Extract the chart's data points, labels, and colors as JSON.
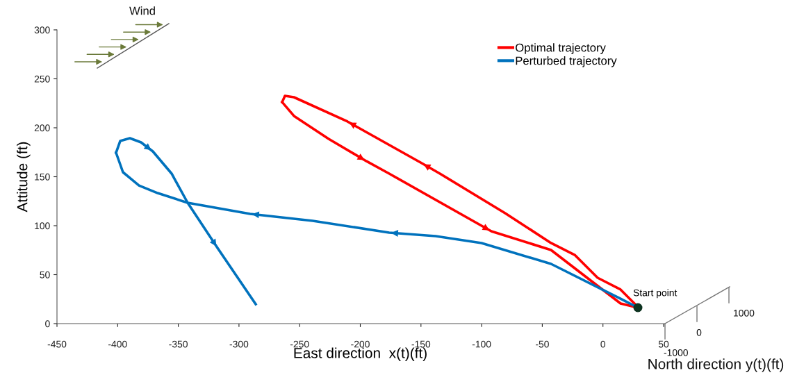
{
  "chart_data": {
    "type": "line",
    "xlabel": "East direction  x(t)(ft)",
    "ylabel": "Attitude (ft)",
    "xlim": [
      -450,
      50
    ],
    "xticks": [
      -450,
      -400,
      -350,
      -300,
      -250,
      -200,
      -150,
      -100,
      -50,
      0,
      50
    ],
    "ylim": [
      0,
      300
    ],
    "yticks": [
      0,
      50,
      100,
      150,
      200,
      250,
      300
    ],
    "grid": false,
    "legend": "top right",
    "marker": "none",
    "line_style": "solid",
    "series": [
      {
        "name": "Optimal trajectory",
        "color": "#ff0000",
        "x": [
          28.8,
          25.9,
          14.5,
          -4.4,
          -23.3,
          -42.8,
          -80.6,
          -134.4,
          -149.3,
          -210.6,
          -254.7,
          -262.1,
          -264.4
        ],
        "values": [
          16.3,
          20.6,
          34.8,
          46.8,
          70.2,
          82.3,
          112.8,
          153.2,
          163.8,
          206.4,
          231.2,
          232.6,
          226.2
        ]
      },
      {
        "color": "#ff0000",
        "x": [
          -264.4,
          -254.7,
          -226.1,
          -195.1,
          -176.2,
          -92.0,
          -42.8,
          14.5,
          28.8
        ],
        "values": [
          226.2,
          212.1,
          188.7,
          166.0,
          153.2,
          94.3,
          75.2,
          20.6,
          16.3
        ]
      },
      {
        "name": "Perturbed trajectory",
        "color": "#0072bd",
        "x": [
          28.8,
          14.5,
          -42.8,
          -100.1,
          -137.9,
          -176.2,
          -239.2,
          -290.8,
          -342.3,
          -367.0,
          -382.4,
          -395.6,
          -401.3
        ],
        "values": [
          16.3,
          25.5,
          61.0,
          82.3,
          89.4,
          92.9,
          105.0,
          112.1,
          123.4,
          133.3,
          141.1,
          154.6,
          174.5
        ]
      },
      {
        "color": "#0072bd",
        "x": [
          -401.3,
          -397.9,
          -389.9,
          -380.7,
          -371.0,
          -355.5,
          -342.3,
          -317.7,
          -286.2
        ],
        "values": [
          174.5,
          186.5,
          189.4,
          185.1,
          175.9,
          153.2,
          123.4,
          77.3,
          19.9
        ]
      },
      {
        "type": "scatter",
        "marker": "circle",
        "color": "#0d3320",
        "x": [
          28.8
        ],
        "values": [
          16.3
        ]
      }
    ],
    "annotations": [
      "Wind",
      {
        "text": "Start point",
        "x": 28.8,
        "y": 16.3
      },
      "North direction y(t)(ft)",
      "-1000",
      "0",
      "1000"
    ]
  }
}
